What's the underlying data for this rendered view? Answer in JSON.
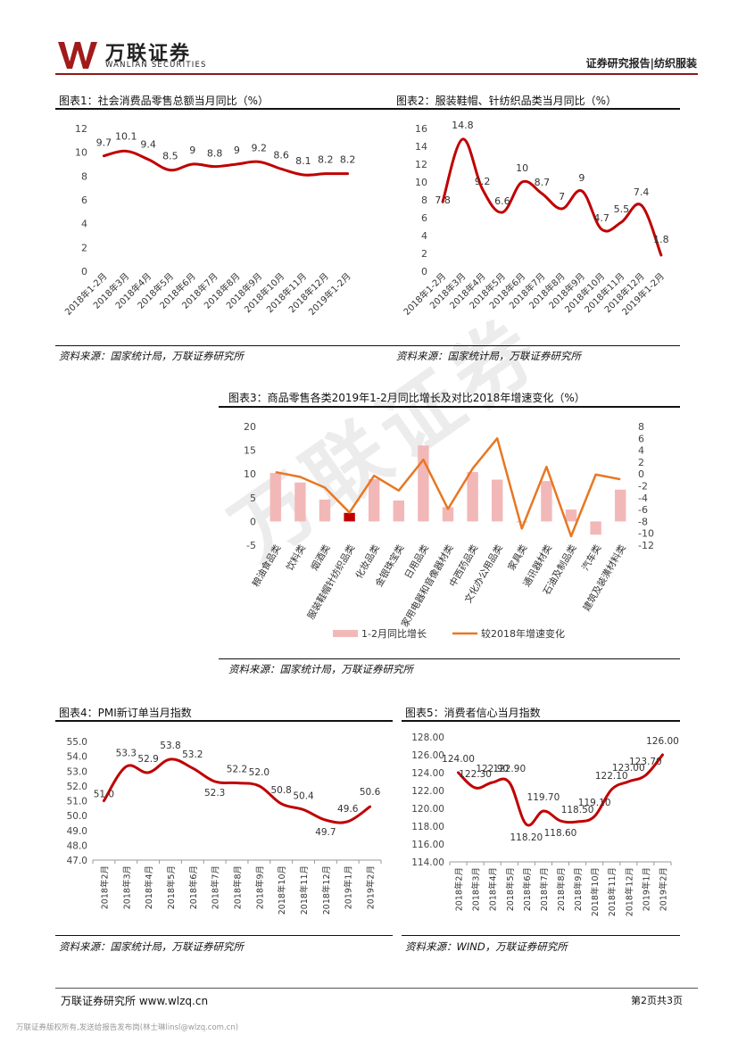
{
  "header": {
    "brand_cn": "万联证券",
    "brand_en": "WANLIAN SECURITIES",
    "report_type": "证券研究报告|纺织服装"
  },
  "watermark": "万联证券",
  "colors": {
    "line": "#c00000",
    "orange": "#e87722",
    "bar": "#f2b8b8",
    "bar_highlight": "#c00000",
    "rule": "#8b1a1a"
  },
  "figures": [
    {
      "title": "图表1：社会消费品零售总额当月同比（%）",
      "source": "资料来源：国家统计局，万联证券研究所"
    },
    {
      "title": "图表2：服装鞋帽、针纺织品类当月同比（%）",
      "source": "资料来源：国家统计局，万联证券研究所"
    },
    {
      "title": "图表3：商品零售各类2019年1-2月同比增长及对比2018年增速变化（%）",
      "source": "资料来源：国家统计局，万联证券研究所"
    },
    {
      "title": "图表4：PMI新订单当月指数",
      "source": "资料来源：国家统计局，万联证券研究所"
    },
    {
      "title": "图表5：消费者信心当月指数",
      "source": "资料来源：WIND，万联证券研究所"
    }
  ],
  "chart_data": [
    {
      "type": "line",
      "title": "图表1：社会消费品零售总额当月同比（%）",
      "x": [
        "2018年1-2月",
        "2018年3月",
        "2018年4月",
        "2018年5月",
        "2018年6月",
        "2018年7月",
        "2018年8月",
        "2018年9月",
        "2018年10月",
        "2018年11月",
        "2018年12月",
        "2019年1-2月"
      ],
      "values": [
        9.7,
        10.1,
        9.4,
        8.5,
        9,
        8.8,
        9,
        9.2,
        8.6,
        8.1,
        8.2,
        8.2
      ],
      "labels": [
        "9.7",
        "10.1",
        "9.4",
        "8.5",
        "9",
        "8.8",
        "9",
        "9.2",
        "8.6",
        "8.1",
        "8.2",
        "8.2"
      ],
      "yticks": [
        "0",
        "2",
        "4",
        "6",
        "8",
        "10",
        "12"
      ],
      "ylim": [
        0,
        12
      ]
    },
    {
      "type": "line",
      "title": "图表2：服装鞋帽、针纺织品类当月同比（%）",
      "x": [
        "2018年1-2月",
        "2018年3月",
        "2018年4月",
        "2018年5月",
        "2018年6月",
        "2018年7月",
        "2018年8月",
        "2018年9月",
        "2018年10月",
        "2018年11月",
        "2018年12月",
        "2019年1-2月"
      ],
      "values": [
        7.8,
        14.8,
        9.2,
        6.6,
        10,
        8.7,
        7,
        9,
        4.7,
        5.5,
        7.4,
        1.8
      ],
      "labels": [
        "7.8",
        "14.8",
        "9.2",
        "6.6",
        "10",
        "8.7",
        "7",
        "9",
        "4.7",
        "5.5",
        "7.4",
        "1.8"
      ],
      "yticks": [
        "0",
        "2",
        "4",
        "6",
        "8",
        "10",
        "12",
        "14",
        "16"
      ],
      "ylim": [
        0,
        16
      ]
    },
    {
      "type": "bar",
      "title": "图表3：商品零售各类2019年1-2月同比增长及对比2018年增速变化（%）",
      "categories": [
        "粮油食品类",
        "饮料类",
        "烟酒类",
        "服装鞋帽针纺织品类",
        "化妆品类",
        "金银珠宝类",
        "日用品类",
        "家用电器和音像器材类",
        "中西药品类",
        "文化办公用品类",
        "家具类",
        "通讯器材类",
        "石油及制品类",
        "汽车类",
        "建筑及装潢材料类"
      ],
      "series": [
        {
          "name": "1-2月同比增长",
          "axis": "left",
          "values": [
            10.2,
            8.2,
            4.6,
            1.8,
            8.9,
            4.4,
            16,
            3,
            10.4,
            8.8,
            -0.1,
            8.5,
            2.5,
            -2.8,
            6.7
          ]
        },
        {
          "name": "较2018年增速变化",
          "axis": "right",
          "values": [
            0.3,
            -0.5,
            -2.3,
            -6.5,
            -0.3,
            -2.8,
            2.4,
            -5.9,
            0.9,
            6,
            -9.2,
            1.2,
            -10.5,
            -0.1,
            -0.9
          ]
        }
      ],
      "highlight_index": 3,
      "yticks_left": [
        "-5",
        "0",
        "5",
        "10",
        "15",
        "20"
      ],
      "ylim_left": [
        -5,
        20
      ],
      "yticks_right": [
        "-12",
        "-10",
        "-8",
        "-6",
        "-4",
        "-2",
        "0",
        "2",
        "4",
        "6",
        "8"
      ],
      "ylim_right": [
        -12,
        8
      ]
    },
    {
      "type": "line",
      "title": "图表4：PMI新订单当月指数",
      "x": [
        "2018年2月",
        "2018年3月",
        "2018年4月",
        "2018年5月",
        "2018年6月",
        "2018年7月",
        "2018年8月",
        "2018年9月",
        "2018年10月",
        "2018年11月",
        "2018年12月",
        "2019年1月",
        "2019年2月"
      ],
      "values": [
        51.0,
        53.3,
        52.9,
        53.8,
        53.2,
        52.3,
        52.2,
        52.0,
        50.8,
        50.4,
        49.7,
        49.6,
        50.6
      ],
      "labels": [
        "51.0",
        "53.3",
        "52.9",
        "53.8",
        "53.2",
        "52.3",
        "52.2",
        "52.0",
        "50.8",
        "50.4",
        "49.7",
        "49.6",
        "50.6"
      ],
      "yticks": [
        "47.0",
        "48.0",
        "49.0",
        "50.0",
        "51.0",
        "52.0",
        "53.0",
        "54.0",
        "55.0"
      ],
      "ylim": [
        47,
        55
      ]
    },
    {
      "type": "line",
      "title": "图表5：消费者信心当月指数",
      "x": [
        "2018年2月",
        "2018年3月",
        "2018年4月",
        "2018年5月",
        "2018年6月",
        "2018年7月",
        "2018年8月",
        "2018年9月",
        "2018年10月",
        "2018年11月",
        "2018年12月",
        "2019年1月",
        "2019年2月"
      ],
      "values": [
        124.0,
        122.3,
        122.9,
        122.9,
        118.2,
        119.7,
        118.6,
        118.5,
        119.1,
        122.1,
        123.0,
        123.7,
        126.0
      ],
      "labels": [
        "124.00",
        "122.30",
        "122.90",
        "122.90",
        "118.20",
        "119.70",
        "118.60",
        "118.50",
        "119.10",
        "122.10",
        "123.00",
        "123.70",
        "126.00"
      ],
      "yticks": [
        "114.00",
        "116.00",
        "118.00",
        "120.00",
        "122.00",
        "124.00",
        "126.00",
        "128.00"
      ],
      "ylim": [
        114,
        128
      ]
    }
  ],
  "footer": {
    "left": "万联证券研究所 www.wlzq.cn",
    "right": "第2页共3页",
    "note": "万联证券版权所有,发送给报告发布岗(林士琳linsl@wlzq.com.cn)"
  }
}
